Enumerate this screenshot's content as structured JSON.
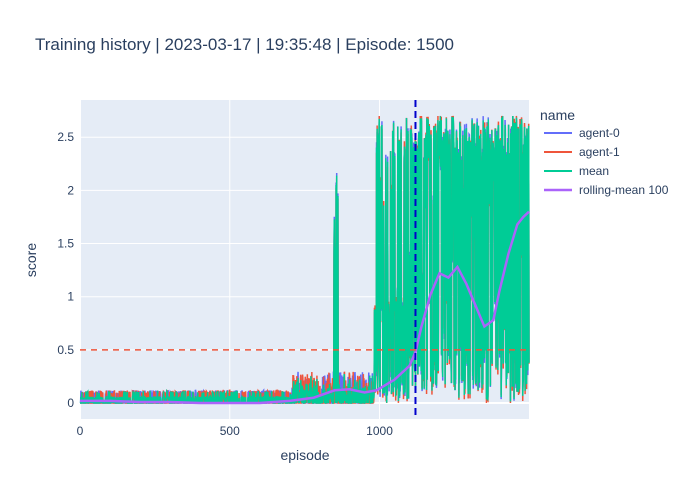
{
  "chart_data": {
    "type": "line",
    "title": "Training history | 2023-03-17 | 19:35:48 | Episode: 1500",
    "xlabel": "episode",
    "ylabel": "score",
    "xlim": [
      0,
      1499
    ],
    "ylim": [
      -0.15,
      2.85
    ],
    "x_ticks": [
      0,
      500,
      1000
    ],
    "y_ticks": [
      0,
      0.5,
      1,
      1.5,
      2,
      2.5
    ],
    "x_tick_labels": [
      "0",
      "500",
      "1000"
    ],
    "y_tick_labels": [
      "0",
      "0.5",
      "1",
      "1.5",
      "2",
      "2.5"
    ],
    "grid": true,
    "legend": {
      "title": "name",
      "placement": "right",
      "entries": [
        "agent-0",
        "agent-1",
        "mean",
        "rolling-mean 100"
      ]
    },
    "colors": {
      "agent-0": "#636efa",
      "agent-1": "#ef553b",
      "mean": "#00cc96",
      "rolling-mean 100": "#ab63fa",
      "threshold": "#ef553b",
      "solved_marker": "#0000cc",
      "plot_bg": "#e5ecf6",
      "grid": "#ffffff",
      "text": "#2a3f5f"
    },
    "reference_lines": [
      {
        "orientation": "horizontal",
        "value": 0.5,
        "style": "dashed",
        "color": "#ef553b"
      },
      {
        "orientation": "vertical",
        "value": 1120,
        "style": "dashed",
        "color": "#0000cc"
      }
    ],
    "rolling_mean": {
      "x": [
        0,
        100,
        200,
        300,
        400,
        500,
        600,
        700,
        780,
        850,
        900,
        950,
        990,
        1050,
        1100,
        1120,
        1140,
        1170,
        1200,
        1230,
        1260,
        1290,
        1320,
        1350,
        1380,
        1400,
        1430,
        1460,
        1480,
        1499
      ],
      "y": [
        0.02,
        0.02,
        0.01,
        0.01,
        0.0,
        0.0,
        0.0,
        0.02,
        0.05,
        0.12,
        0.13,
        0.1,
        0.12,
        0.22,
        0.35,
        0.48,
        0.72,
        1.02,
        1.22,
        1.18,
        1.28,
        1.12,
        0.92,
        0.72,
        0.78,
        1.05,
        1.4,
        1.68,
        1.75,
        1.8
      ]
    },
    "series_profile": {
      "episode_count": 1500,
      "max_score": 2.7,
      "phases": [
        {
          "from": 0,
          "to": 700,
          "typical_score": 0.0,
          "spike_score": 0.1
        },
        {
          "from": 700,
          "to": 980,
          "typical_score": 0.05,
          "spike_score": 0.3
        },
        {
          "from": 980,
          "to": 1499,
          "typical_score": 0.8,
          "spike_score": 2.7
        }
      ]
    }
  }
}
